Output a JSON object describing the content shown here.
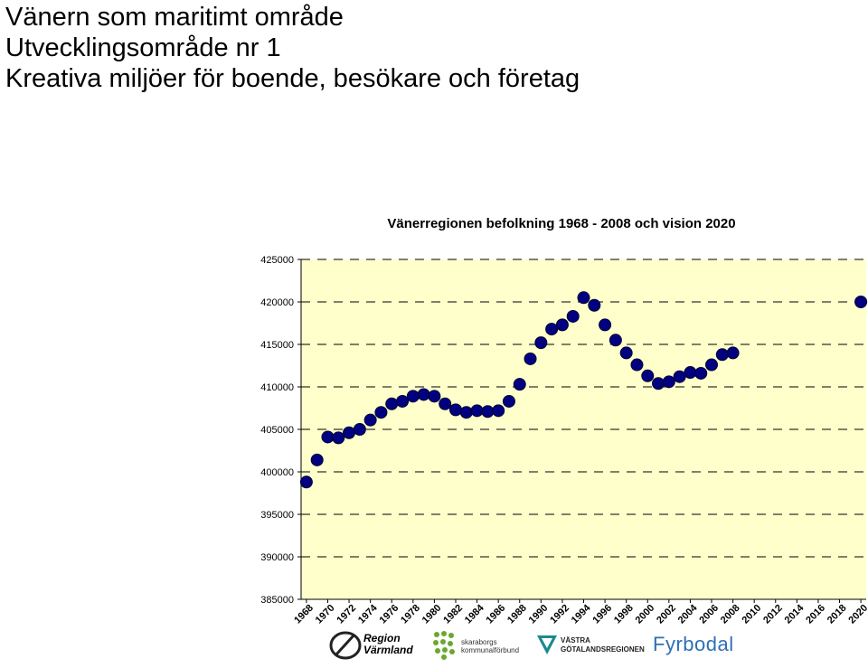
{
  "heading": {
    "line1": "Vänern som maritimt område",
    "line2": "Utvecklingsområde nr 1",
    "line3": "Kreativa miljöer för boende, besökare och företag"
  },
  "chart_data": {
    "type": "line",
    "title": "Vänerregionen befolkning 1968 - 2008 och vision 2020",
    "xlabel": "",
    "ylabel": "",
    "ylim": [
      385000,
      425000
    ],
    "yticks": [
      425000,
      420000,
      415000,
      410000,
      405000,
      400000,
      395000,
      390000,
      385000
    ],
    "xticks": [
      "1968",
      "1970",
      "1972",
      "1974",
      "1976",
      "1978",
      "1980",
      "1982",
      "1984",
      "1986",
      "1988",
      "1990",
      "1992",
      "1994",
      "1996",
      "1998",
      "2000",
      "2002",
      "2004",
      "2006",
      "2008",
      "2010",
      "2012",
      "2014",
      "2016",
      "2018",
      "2020"
    ],
    "grid": true,
    "plot_background": "#ffffcc",
    "marker_color": "#000080",
    "series": [
      {
        "x": [
          1968,
          1969,
          1970,
          1971,
          1972,
          1973,
          1974,
          1975,
          1976,
          1977,
          1978,
          1979,
          1980,
          1981,
          1982,
          1983,
          1984,
          1985,
          1986,
          1987,
          1988,
          1989,
          1990,
          1991,
          1992,
          1993,
          1994,
          1995,
          1996,
          1997,
          1998,
          1999,
          2000,
          2001,
          2002,
          2003,
          2004,
          2005,
          2006,
          2007,
          2008,
          2020
        ],
        "values": [
          398800,
          401400,
          404100,
          404000,
          404600,
          405000,
          406100,
          407000,
          408000,
          408300,
          408900,
          409100,
          408900,
          408000,
          407300,
          407000,
          407200,
          407100,
          407200,
          408300,
          410300,
          413300,
          415200,
          416800,
          417300,
          418300,
          420500,
          419600,
          417300,
          415500,
          414000,
          412600,
          411300,
          410400,
          410600,
          411200,
          411700,
          411600,
          412600,
          413800,
          414000,
          420000
        ]
      }
    ]
  },
  "logos": {
    "region_varmland": "Region Värmland",
    "skaraborgs": "skaraborgs kommunalförbund",
    "vastra_gotaland": "VÄSTRA GÖTALANDSREGIONEN",
    "fyrbodal": "Fyrbodal"
  },
  "colors": {
    "marker": "#000080",
    "plot_background": "#ffffcc",
    "grid": "#000000",
    "fyrbodal_blue": "#2f6fb4",
    "skaraborg_green": "#6aa72e"
  }
}
